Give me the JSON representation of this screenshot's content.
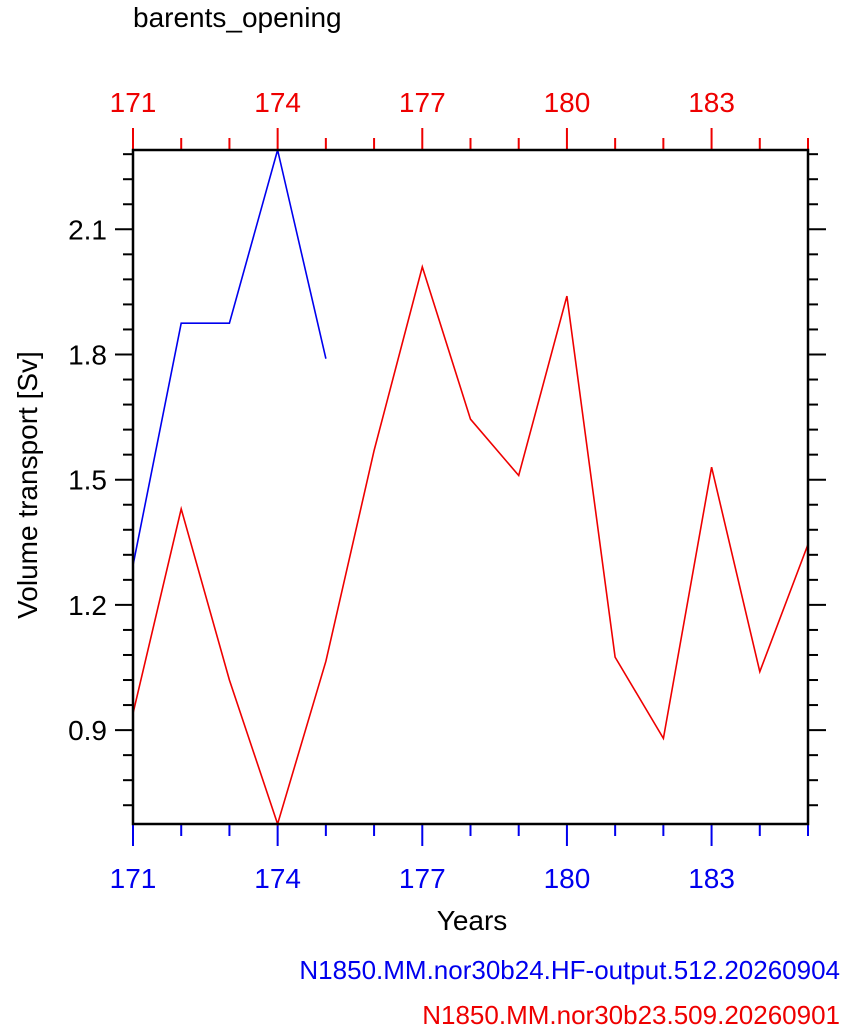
{
  "chart_data": {
    "type": "line",
    "title": "barents_opening",
    "xlabel": "Years",
    "ylabel": "Volume transport [Sv]",
    "xlim": [
      171,
      185
    ],
    "ylim": [
      0.675,
      2.29
    ],
    "x_ticks": [
      171,
      174,
      177,
      180,
      183
    ],
    "y_ticks": [
      0.9,
      1.2,
      1.5,
      1.8,
      2.1
    ],
    "y_tick_labels": [
      "0.9",
      "1.2",
      "1.5",
      "1.8",
      "2.1"
    ],
    "grid": false,
    "legend_placement": "bottom-right",
    "series": [
      {
        "name": "N1850.MM.nor30b24.HF-output.512.20260904",
        "color": "#0000ee",
        "x": [
          171,
          172,
          173,
          174,
          175
        ],
        "y": [
          1.295,
          1.875,
          1.875,
          2.29,
          1.79
        ]
      },
      {
        "name": "N1850.MM.nor30b23.509.20260901",
        "color": "#ee0000",
        "x": [
          171,
          172,
          173,
          174,
          175,
          176,
          177,
          178,
          179,
          180,
          181,
          182,
          183,
          184,
          185
        ],
        "y": [
          0.94,
          1.43,
          1.02,
          0.675,
          1.065,
          1.57,
          2.01,
          1.645,
          1.51,
          1.94,
          1.075,
          0.88,
          1.53,
          1.04,
          1.345
        ]
      }
    ]
  }
}
